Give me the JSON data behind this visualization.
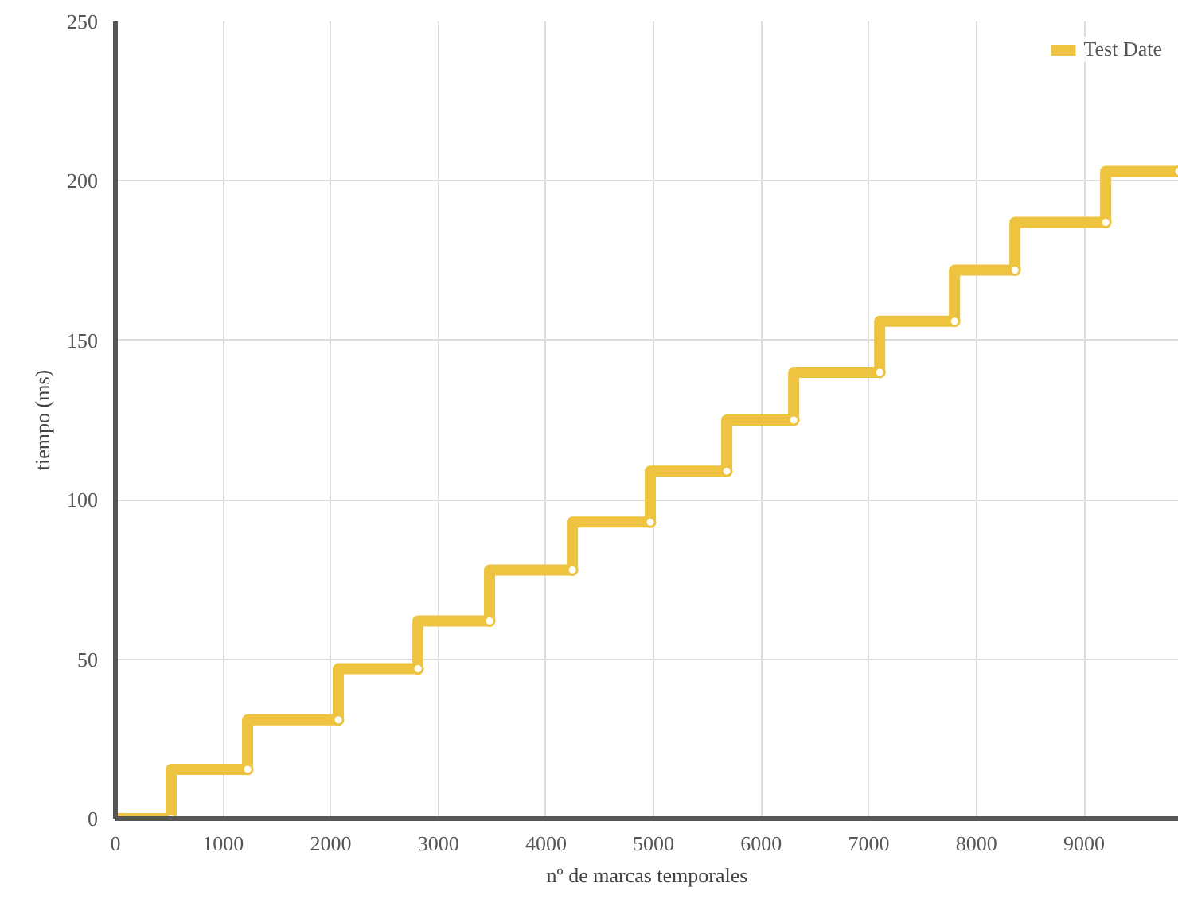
{
  "chart_data": {
    "type": "step",
    "xlabel": "nº de marcas temporales",
    "ylabel": "tiempo (ms)",
    "x": [
      0,
      518,
      1228,
      2071,
      2811,
      3476,
      4246,
      4970,
      5680,
      6302,
      7101,
      7796,
      8358,
      9201,
      9880
    ],
    "series": [
      {
        "name": "Test Date",
        "color": "#eec33f",
        "values": [
          0,
          0,
          15.5,
          31,
          47,
          62,
          78,
          93,
          109,
          125,
          140,
          156,
          172,
          187,
          203
        ]
      }
    ],
    "xlim": [
      0,
      9880
    ],
    "ylim": [
      0,
      250
    ],
    "xticks": [
      0,
      1000,
      2000,
      3000,
      4000,
      5000,
      6000,
      7000,
      8000,
      9000
    ],
    "yticks": [
      0,
      50,
      100,
      150,
      200,
      250
    ],
    "grid": true,
    "legend": "top right",
    "marker": "circle"
  }
}
